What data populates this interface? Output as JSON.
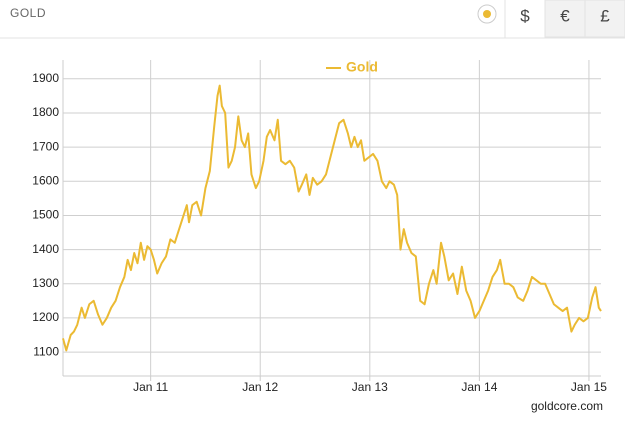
{
  "header": {
    "title": "GOLD",
    "currencies": [
      "$",
      "€",
      "£"
    ]
  },
  "chart_data": {
    "type": "line",
    "credit": "goldcore.com",
    "x": [
      2010.2,
      2010.23,
      2010.27,
      2010.3,
      2010.33,
      2010.37,
      2010.4,
      2010.44,
      2010.48,
      2010.52,
      2010.56,
      2010.6,
      2010.64,
      2010.68,
      2010.72,
      2010.76,
      2010.79,
      2010.82,
      2010.85,
      2010.88,
      2010.91,
      2010.94,
      2010.97,
      2011.0,
      2011.03,
      2011.06,
      2011.1,
      2011.14,
      2011.18,
      2011.22,
      2011.26,
      2011.3,
      2011.33,
      2011.35,
      2011.38,
      2011.42,
      2011.46,
      2011.5,
      2011.54,
      2011.58,
      2011.61,
      2011.63,
      2011.65,
      2011.68,
      2011.71,
      2011.74,
      2011.77,
      2011.8,
      2011.83,
      2011.86,
      2011.89,
      2011.92,
      2011.96,
      2011.99,
      2012.03,
      2012.06,
      2012.09,
      2012.13,
      2012.16,
      2012.19,
      2012.23,
      2012.27,
      2012.31,
      2012.35,
      2012.38,
      2012.42,
      2012.45,
      2012.48,
      2012.52,
      2012.56,
      2012.6,
      2012.64,
      2012.68,
      2012.72,
      2012.76,
      2012.8,
      2012.83,
      2012.86,
      2012.89,
      2012.92,
      2012.95,
      2012.99,
      2013.03,
      2013.07,
      2013.11,
      2013.15,
      2013.18,
      2013.22,
      2013.25,
      2013.28,
      2013.31,
      2013.34,
      2013.38,
      2013.42,
      2013.46,
      2013.5,
      2013.54,
      2013.58,
      2013.61,
      2013.65,
      2013.68,
      2013.72,
      2013.76,
      2013.8,
      2013.84,
      2013.88,
      2013.92,
      2013.96,
      2014.0,
      2014.04,
      2014.08,
      2014.12,
      2014.16,
      2014.19,
      2014.23,
      2014.27,
      2014.31,
      2014.35,
      2014.4,
      2014.44,
      2014.48,
      2014.52,
      2014.56,
      2014.6,
      2014.64,
      2014.68,
      2014.72,
      2014.76,
      2014.8,
      2014.84,
      2014.87,
      2014.91,
      2014.95,
      2014.99,
      2015.03,
      2015.06,
      2015.09,
      2015.11
    ],
    "series": [
      {
        "name": "Gold",
        "color": "#ebba33",
        "values": [
          1140,
          1105,
          1150,
          1160,
          1180,
          1230,
          1200,
          1240,
          1250,
          1210,
          1180,
          1200,
          1230,
          1250,
          1290,
          1320,
          1370,
          1340,
          1390,
          1360,
          1420,
          1370,
          1410,
          1400,
          1370,
          1330,
          1360,
          1380,
          1430,
          1420,
          1460,
          1500,
          1530,
          1480,
          1530,
          1540,
          1500,
          1580,
          1630,
          1760,
          1850,
          1880,
          1820,
          1800,
          1640,
          1660,
          1700,
          1790,
          1720,
          1700,
          1740,
          1620,
          1580,
          1600,
          1660,
          1730,
          1750,
          1720,
          1780,
          1660,
          1650,
          1660,
          1640,
          1570,
          1590,
          1620,
          1560,
          1610,
          1590,
          1600,
          1620,
          1670,
          1720,
          1770,
          1780,
          1740,
          1700,
          1730,
          1700,
          1720,
          1660,
          1670,
          1680,
          1660,
          1600,
          1580,
          1600,
          1590,
          1560,
          1400,
          1460,
          1420,
          1390,
          1380,
          1250,
          1240,
          1300,
          1340,
          1300,
          1420,
          1380,
          1310,
          1330,
          1270,
          1350,
          1280,
          1250,
          1200,
          1220,
          1250,
          1280,
          1320,
          1340,
          1370,
          1300,
          1300,
          1290,
          1260,
          1250,
          1280,
          1320,
          1310,
          1300,
          1300,
          1270,
          1240,
          1230,
          1220,
          1230,
          1160,
          1180,
          1200,
          1190,
          1200,
          1260,
          1290,
          1230,
          1220
        ]
      }
    ],
    "xlim": [
      2010.2,
      2015.11
    ],
    "xticks": [
      {
        "value": 2011,
        "label": "Jan 11"
      },
      {
        "value": 2012,
        "label": "Jan 12"
      },
      {
        "value": 2013,
        "label": "Jan 13"
      },
      {
        "value": 2014,
        "label": "Jan 14"
      },
      {
        "value": 2015,
        "label": "Jan 15"
      }
    ],
    "ylim": [
      1030,
      1955
    ],
    "yticks": [
      1100,
      1200,
      1300,
      1400,
      1500,
      1600,
      1700,
      1800,
      1900
    ],
    "grid": true
  }
}
